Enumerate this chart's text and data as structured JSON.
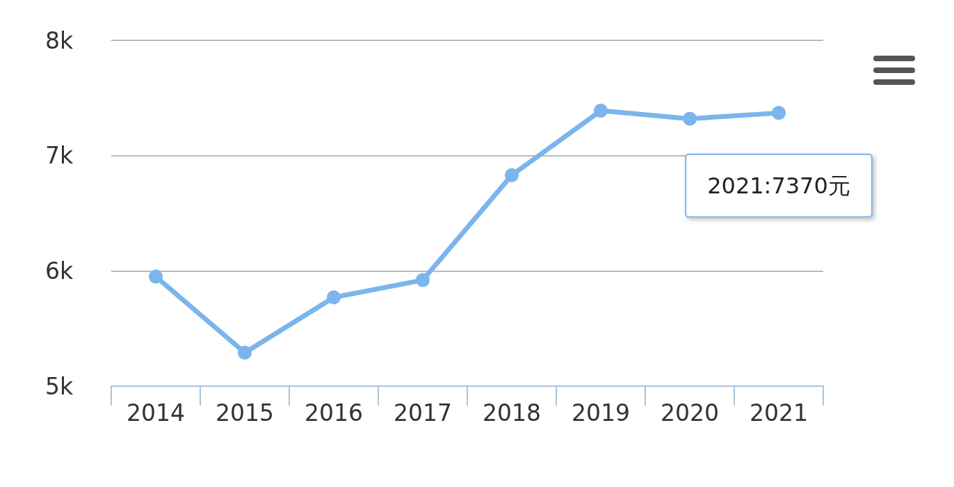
{
  "chart_data": {
    "type": "line",
    "categories": [
      "2014",
      "2015",
      "2016",
      "2017",
      "2018",
      "2019",
      "2020",
      "2021"
    ],
    "series": [
      {
        "color": "#7cb5ec",
        "values": [
          5950,
          5290,
          5770,
          5920,
          6830,
          7390,
          7320,
          7370
        ]
      }
    ],
    "ylim": [
      5000,
      8000
    ],
    "yticks": [
      {
        "value": 5000,
        "label": "5k"
      },
      {
        "value": 6000,
        "label": "6k"
      },
      {
        "value": 7000,
        "label": "7k"
      },
      {
        "value": 8000,
        "label": "8k"
      }
    ],
    "grid": "y",
    "marker": "circle",
    "line_style": "solid",
    "annotations": [
      {
        "text": "2021:7370元",
        "x": "2021",
        "y": 7370
      }
    ]
  }
}
